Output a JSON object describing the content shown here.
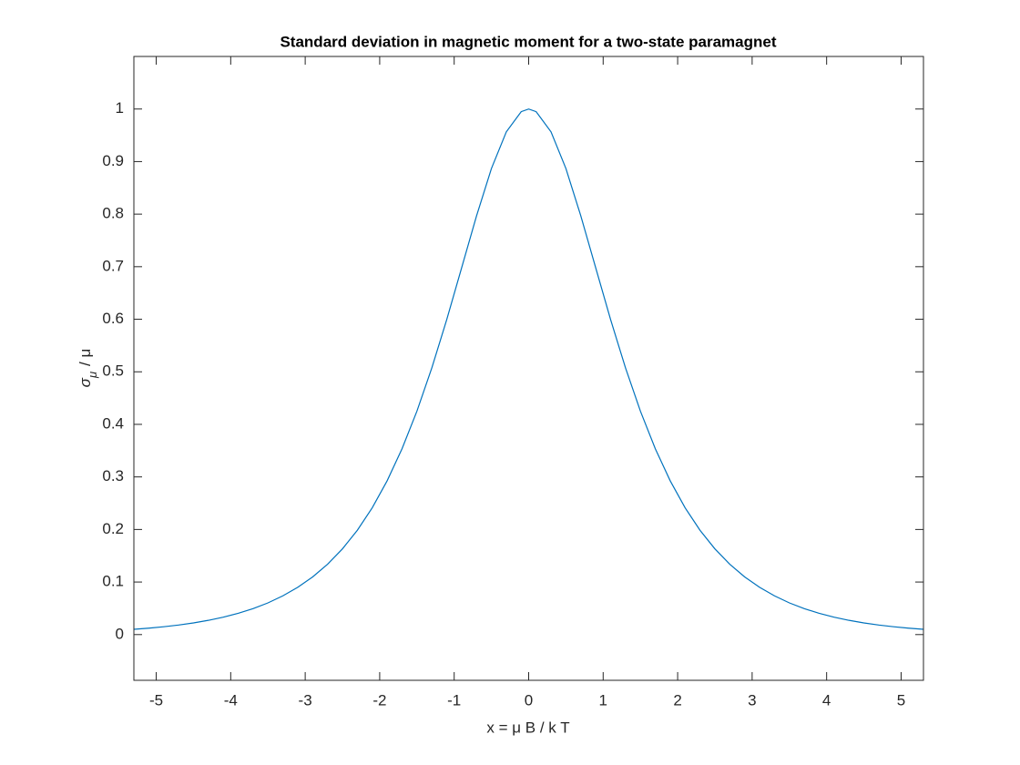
{
  "chart_data": {
    "type": "line",
    "title": "Standard deviation in magnetic moment for a two-state paramagnet",
    "xlabel": "x = μ B / k T",
    "ylabel": {
      "symbol": "σ",
      "subscript": "μ",
      "rest": "/ μ"
    },
    "series": [
      {
        "color": "#0072bd",
        "x": [
          -5.3,
          -5.1,
          -4.9,
          -4.7,
          -4.5,
          -4.3,
          -4.1,
          -3.9,
          -3.7,
          -3.5,
          -3.3,
          -3.1,
          -2.9,
          -2.7,
          -2.5,
          -2.3,
          -2.1,
          -1.9,
          -1.7,
          -1.5,
          -1.3,
          -1.1,
          -0.9,
          -0.7,
          -0.5,
          -0.3,
          -0.1,
          0,
          0.1,
          0.3,
          0.5,
          0.7,
          0.9,
          1.1,
          1.3,
          1.5,
          1.7,
          1.9,
          2.1,
          2.3,
          2.5,
          2.7,
          2.9,
          3.1,
          3.3,
          3.5,
          3.7,
          3.9,
          4.1,
          4.3,
          4.5,
          4.7,
          4.9,
          5.1,
          5.3
        ],
        "values": [
          0.01,
          0.0122,
          0.0149,
          0.0182,
          0.0222,
          0.0271,
          0.0331,
          0.0405,
          0.0494,
          0.0603,
          0.0737,
          0.0899,
          0.1097,
          0.1338,
          0.1631,
          0.1985,
          0.2413,
          0.2926,
          0.3536,
          0.4251,
          0.5074,
          0.5993,
          0.6978,
          0.7967,
          0.8868,
          0.9566,
          0.995,
          1,
          0.995,
          0.9566,
          0.8868,
          0.7967,
          0.6978,
          0.5993,
          0.5074,
          0.4251,
          0.3536,
          0.2926,
          0.2413,
          0.1985,
          0.1631,
          0.1338,
          0.1097,
          0.0899,
          0.0737,
          0.0603,
          0.0494,
          0.0405,
          0.0331,
          0.0271,
          0.0222,
          0.0182,
          0.0149,
          0.0122,
          0.01
        ]
      }
    ],
    "xlim": [
      -5.3,
      5.3
    ],
    "ylim": [
      -0.087,
      1.1
    ],
    "xticks": [
      -5,
      -4,
      -3,
      -2,
      -1,
      0,
      1,
      2,
      3,
      4,
      5
    ],
    "yticks": [
      0,
      0.1,
      0.2,
      0.3,
      0.4,
      0.5,
      0.6,
      0.7,
      0.8,
      0.9,
      1
    ]
  }
}
